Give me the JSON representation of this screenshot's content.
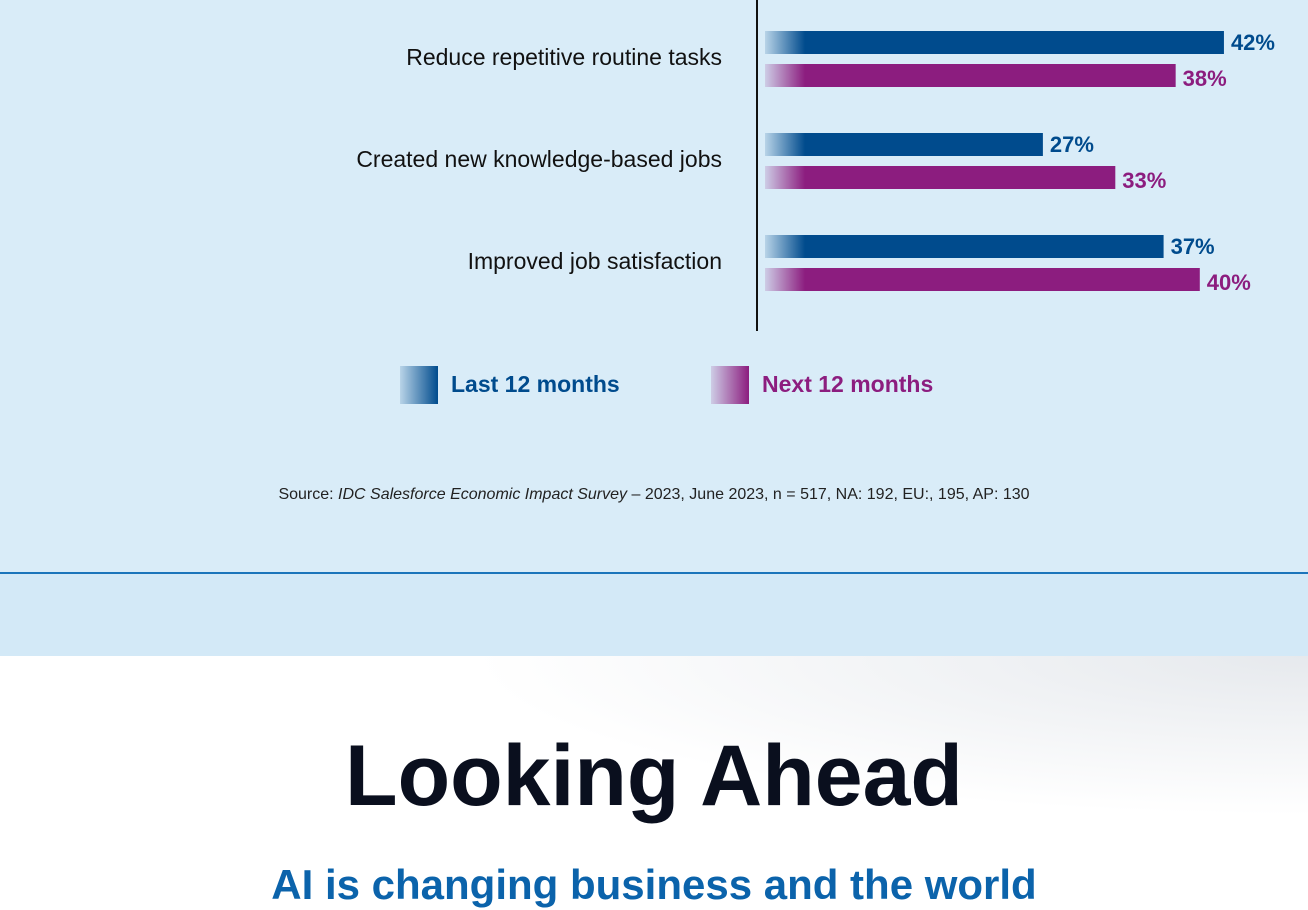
{
  "chart_data": {
    "type": "hbar",
    "categories": [
      "Reduce repetitive routine tasks",
      "Created new knowledge-based jobs",
      "Improved job satisfaction"
    ],
    "series": [
      {
        "name": "Last 12 months",
        "color": "#004b8d",
        "values": [
          42,
          27,
          37
        ],
        "value_labels": [
          "42%",
          "27%",
          "37%"
        ]
      },
      {
        "name": "Next 12 months",
        "color": "#8c1d7f",
        "values": [
          38,
          33,
          40
        ],
        "value_labels": [
          "38%",
          "33%",
          "40%"
        ]
      }
    ]
  },
  "source": {
    "prefix": "Source: ",
    "survey": "IDC Salesforce Economic Impact Survey",
    "suffix": " – 2023, June 2023, n = 517, NA: 192, EU:, 195, AP: 130"
  },
  "section": {
    "title": "Looking Ahead",
    "subtitle": "AI is changing business and the world"
  }
}
